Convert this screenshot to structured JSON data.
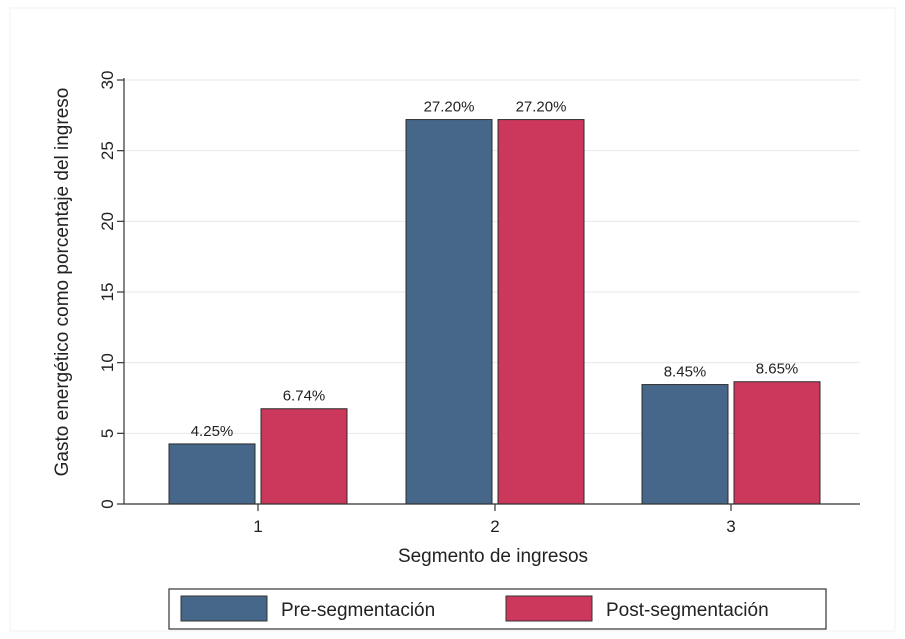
{
  "chart_data": {
    "type": "bar",
    "title": "",
    "xlabel": "Segmento de ingresos",
    "ylabel": "Gasto energético como porcentaje del ingreso",
    "categories": [
      "1",
      "2",
      "3"
    ],
    "ylim": [
      0,
      30
    ],
    "yticks": [
      0,
      5,
      10,
      15,
      20,
      25,
      30
    ],
    "grid": true,
    "legend_position": "bottom",
    "series": [
      {
        "name": "Pre-segmentación",
        "color": "#46678a",
        "values": [
          4.25,
          27.2,
          8.45
        ],
        "labels": [
          "4.25%",
          "27.20%",
          "8.45%"
        ]
      },
      {
        "name": "Post-segmentación",
        "color": "#cc385c",
        "values": [
          6.74,
          27.2,
          8.65
        ],
        "labels": [
          "6.74%",
          "27.20%",
          "8.65%"
        ]
      }
    ]
  }
}
